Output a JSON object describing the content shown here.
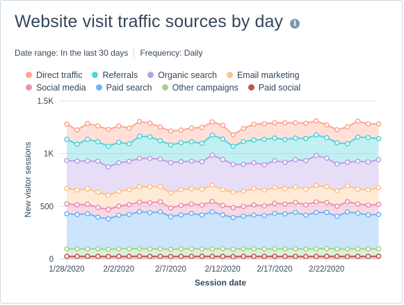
{
  "header": {
    "title": "Website visit traffic sources by day",
    "info_icon": "info-icon"
  },
  "meta": {
    "date_range": "Date range: In the last 30 days",
    "frequency": "Frequency: Daily"
  },
  "chart_data": {
    "type": "area",
    "stacked": true,
    "xlabel": "Session date",
    "ylabel": "New visitor sessions",
    "ylim": [
      0,
      1500
    ],
    "yticks": [
      0,
      500,
      1000,
      1500
    ],
    "ytick_labels": [
      "0",
      "500",
      "1K",
      "1.5K"
    ],
    "xtick_labels": [
      "1/28/2020",
      "2/2/2020",
      "2/7/2020",
      "2/12/2020",
      "2/17/2020",
      "2/22/2020"
    ],
    "xtick_index": [
      0,
      5,
      10,
      15,
      20,
      25
    ],
    "grid": true,
    "legend_position": "top",
    "series": [
      {
        "name": "Paid social",
        "color": "#c0544c",
        "values": [
          25,
          25,
          26,
          25,
          24,
          25,
          25,
          26,
          25,
          25,
          24,
          25,
          25,
          26,
          25,
          25,
          24,
          25,
          25,
          25,
          26,
          25,
          25,
          24,
          25,
          26,
          25,
          24,
          25,
          25,
          26
        ]
      },
      {
        "name": "Other campaigns",
        "color": "#a2d28f",
        "values": [
          70,
          72,
          70,
          73,
          68,
          72,
          72,
          74,
          70,
          73,
          68,
          72,
          73,
          70,
          71,
          74,
          70,
          72,
          73,
          70,
          72,
          71,
          73,
          70,
          72,
          74,
          70,
          72,
          73,
          71,
          72
        ]
      },
      {
        "name": "Paid search",
        "color": "#6eb5f5",
        "values": [
          335,
          325,
          335,
          300,
          290,
          318,
          325,
          350,
          345,
          350,
          310,
          322,
          335,
          322,
          352,
          320,
          300,
          310,
          318,
          318,
          335,
          332,
          345,
          322,
          345,
          342,
          312,
          350,
          337,
          324,
          325
        ]
      },
      {
        "name": "Social media",
        "color": "#ea90b1",
        "values": [
          95,
          93,
          90,
          90,
          88,
          88,
          95,
          90,
          95,
          95,
          82,
          90,
          90,
          95,
          98,
          90,
          95,
          92,
          98,
          92,
          95,
          95,
          95,
          98,
          100,
          95,
          95,
          98,
          88,
          92,
          95
        ]
      },
      {
        "name": "Email marketing",
        "color": "#fcc38b",
        "values": [
          145,
          140,
          145,
          145,
          135,
          140,
          140,
          145,
          150,
          145,
          145,
          150,
          145,
          150,
          155,
          150,
          145,
          145,
          155,
          150,
          150,
          145,
          145,
          150,
          155,
          150,
          145,
          150,
          140,
          145,
          160
        ]
      },
      {
        "name": "Organic search",
        "color": "#be9ee5",
        "values": [
          265,
          275,
          265,
          295,
          270,
          270,
          270,
          270,
          270,
          260,
          285,
          265,
          260,
          260,
          285,
          285,
          265,
          255,
          245,
          240,
          255,
          250,
          260,
          270,
          285,
          270,
          255,
          225,
          265,
          265,
          265
        ]
      },
      {
        "name": "Referrals",
        "color": "#51d3d9",
        "values": [
          200,
          160,
          205,
          185,
          195,
          195,
          165,
          210,
          205,
          175,
          170,
          180,
          185,
          175,
          190,
          195,
          170,
          215,
          215,
          240,
          215,
          215,
          205,
          210,
          195,
          195,
          200,
          175,
          230,
          230,
          200
        ]
      },
      {
        "name": "Direct traffic",
        "color": "#fea58e",
        "values": [
          145,
          135,
          150,
          150,
          160,
          155,
          150,
          140,
          130,
          130,
          130,
          120,
          130,
          150,
          125,
          130,
          110,
          125,
          150,
          150,
          145,
          160,
          145,
          145,
          135,
          120,
          125,
          160,
          150,
          130,
          140
        ]
      }
    ],
    "legend_order": [
      "Direct traffic",
      "Referrals",
      "Organic search",
      "Email marketing",
      "Social media",
      "Paid search",
      "Other campaigns",
      "Paid social"
    ]
  }
}
